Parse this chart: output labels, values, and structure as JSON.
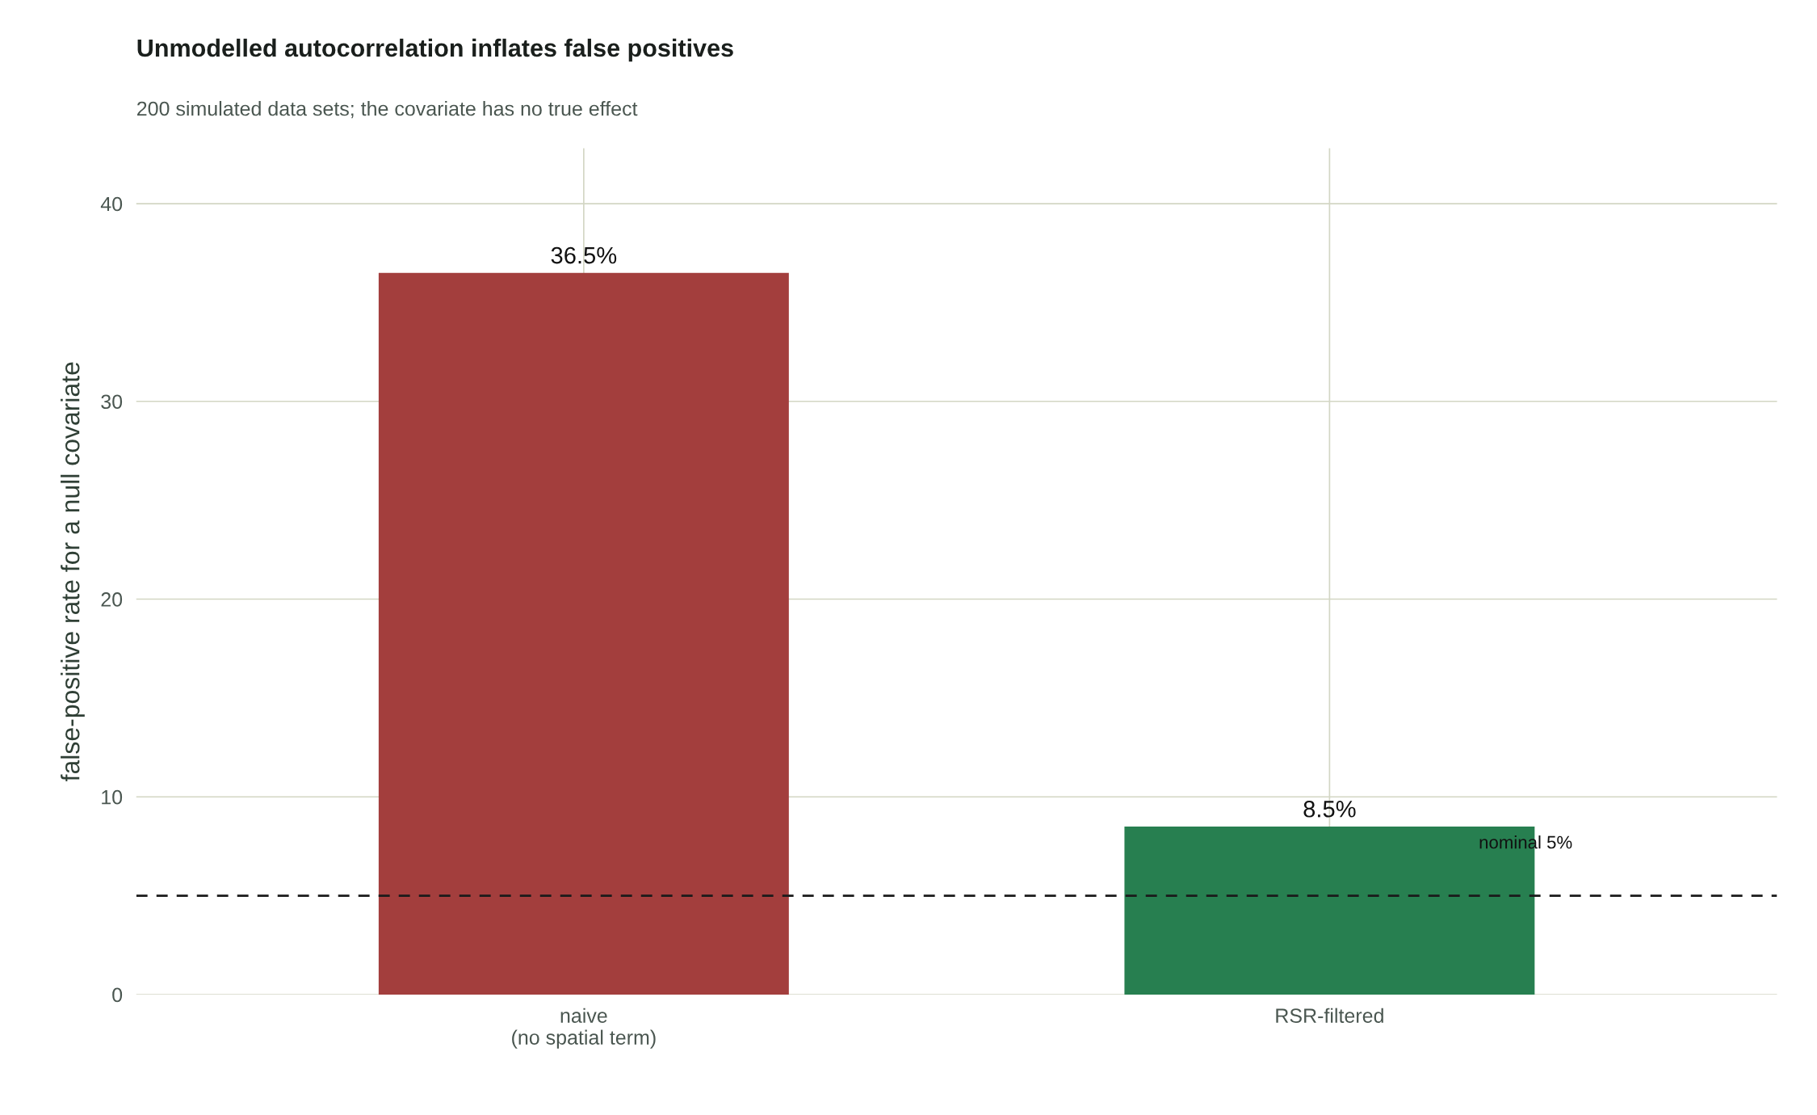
{
  "chart_data": {
    "type": "bar",
    "title": "Unmodelled autocorrelation inflates false positives",
    "subtitle": "200 simulated data sets; the covariate has no true effect",
    "ylabel": "false-positive rate for a null covariate",
    "categories": [
      "naive\n(no spatial term)",
      "RSR-filtered"
    ],
    "values": [
      36.5,
      8.5
    ],
    "colors": [
      "#a33e3d",
      "#277f50"
    ],
    "value_labels": [
      "36.5%",
      "8.5%"
    ],
    "ylim": [
      0,
      42.8
    ],
    "yticks": [
      0,
      10,
      20,
      30,
      40
    ],
    "grid": true,
    "ref_lines": [
      {
        "axis": "y",
        "value": 5,
        "label": "nominal 5%",
        "color": "#1a1a1a",
        "line_style": "dashed"
      }
    ]
  }
}
